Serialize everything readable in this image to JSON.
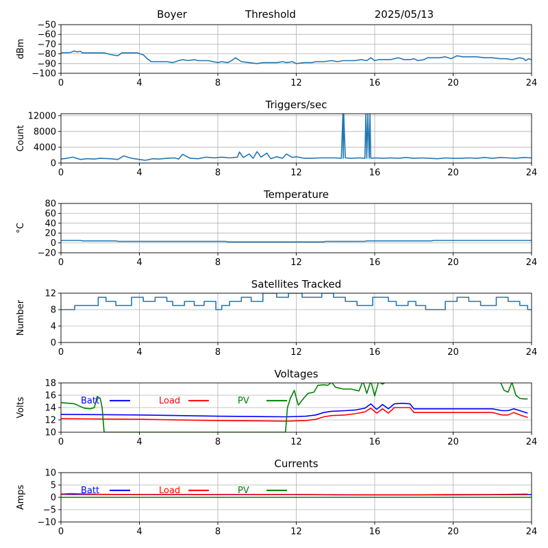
{
  "header": {
    "station": "Boyer",
    "mode": "Threshold",
    "date": "2025/05/13"
  },
  "chart_data": [
    {
      "type": "line",
      "title": "",
      "xlabel": "",
      "ylabel": "dBm",
      "xlim": [
        0,
        24
      ],
      "ylim": [
        -100,
        -50
      ],
      "xticks": [
        0,
        4,
        8,
        12,
        16,
        20,
        24
      ],
      "yticks": [
        -100,
        -90,
        -80,
        -70,
        -60,
        -50
      ],
      "ytick_labels": [
        "−100",
        "−90",
        "−80",
        "−70",
        "−60",
        "−50"
      ],
      "grid": true,
      "series": [
        {
          "color": "#1f77b4",
          "x": [
            0,
            0.5,
            0.7,
            0.8,
            1.0,
            1.1,
            1.6,
            2.2,
            2.6,
            2.9,
            3.1,
            3.6,
            3.9,
            4.2,
            4.4,
            4.6,
            4.9,
            5.4,
            5.7,
            6.0,
            6.2,
            6.5,
            6.8,
            7.0,
            7.5,
            8.0,
            8.2,
            8.5,
            8.7,
            8.9,
            9.2,
            9.6,
            10.0,
            10.3,
            10.7,
            11.0,
            11.3,
            11.5,
            11.8,
            12.0,
            12.4,
            12.8,
            13.0,
            13.4,
            13.8,
            14.1,
            14.4,
            14.7,
            15.0,
            15.3,
            15.6,
            15.8,
            16.0,
            16.2,
            16.5,
            16.8,
            17.2,
            17.5,
            17.8,
            18.0,
            18.2,
            18.5,
            18.7,
            19.0,
            19.3,
            19.6,
            19.9,
            20.2,
            20.5,
            20.8,
            21.2,
            21.6,
            22.0,
            22.4,
            22.7,
            23.0,
            23.2,
            23.4,
            23.6,
            23.7,
            23.85,
            24
          ],
          "y": [
            -79,
            -78.5,
            -77,
            -78,
            -77.5,
            -79,
            -79,
            -79,
            -81,
            -82,
            -79,
            -79,
            -79,
            -81,
            -85,
            -88,
            -88,
            -88,
            -89,
            -87,
            -86,
            -87,
            -86,
            -87,
            -87,
            -89,
            -88,
            -89,
            -87,
            -84,
            -88,
            -89,
            -90,
            -89,
            -89,
            -89,
            -88,
            -89,
            -88,
            -90,
            -89,
            -89,
            -88,
            -88,
            -87,
            -88,
            -87,
            -87,
            -87,
            -86,
            -87,
            -84,
            -87,
            -86,
            -86,
            -86,
            -84,
            -86,
            -86,
            -85,
            -87,
            -86,
            -84,
            -84,
            -84,
            -83,
            -85,
            -82,
            -83,
            -83,
            -83,
            -84,
            -84,
            -85,
            -85,
            -86,
            -85,
            -84,
            -85,
            -87,
            -85,
            -86
          ]
        }
      ]
    },
    {
      "type": "line",
      "title": "Triggers/sec",
      "xlabel": "",
      "ylabel": "Count",
      "xlim": [
        0,
        24
      ],
      "ylim": [
        0,
        12500
      ],
      "xticks": [
        0,
        4,
        8,
        12,
        16,
        20,
        24
      ],
      "yticks": [
        0,
        4000,
        8000,
        12000
      ],
      "ytick_labels": [
        "0",
        "4000",
        "8000",
        "12000"
      ],
      "grid": true,
      "series": [
        {
          "color": "#1f77b4",
          "x": [
            0,
            0.3,
            0.6,
            1.0,
            1.3,
            1.7,
            2.0,
            2.5,
            2.9,
            3.2,
            3.6,
            4.0,
            4.3,
            4.7,
            5.0,
            5.4,
            5.8,
            6.0,
            6.2,
            6.6,
            7.0,
            7.4,
            7.8,
            8.2,
            8.6,
            9.0,
            9.1,
            9.3,
            9.6,
            9.8,
            10.0,
            10.2,
            10.5,
            10.7,
            11.0,
            11.3,
            11.5,
            11.8,
            12.0,
            12.4,
            12.8,
            13.2,
            13.6,
            14.0,
            14.3,
            14.38,
            14.4,
            14.42,
            14.5,
            14.8,
            15.2,
            15.5,
            15.55,
            15.6,
            15.65,
            15.72,
            15.76,
            15.8,
            15.85,
            16.0,
            16.4,
            16.8,
            17.2,
            17.6,
            18.0,
            18.4,
            18.8,
            19.2,
            19.6,
            20.0,
            20.4,
            20.8,
            21.2,
            21.6,
            22.0,
            22.4,
            22.8,
            23.2,
            23.6,
            24
          ],
          "y": [
            1000,
            1200,
            1500,
            900,
            1100,
            1000,
            1200,
            1100,
            900,
            1800,
            1200,
            900,
            700,
            1100,
            1000,
            1200,
            1300,
            1000,
            2200,
            1200,
            1100,
            1500,
            1300,
            1500,
            1300,
            1500,
            2800,
            1400,
            2300,
            1200,
            2900,
            1500,
            2500,
            1100,
            1600,
            1200,
            2300,
            1400,
            1600,
            1200,
            1200,
            1300,
            1300,
            1300,
            1200,
            12500,
            1200,
            12500,
            1300,
            1200,
            1300,
            1200,
            12500,
            1200,
            12500,
            1200,
            12500,
            1300,
            1200,
            1300,
            1200,
            1300,
            1200,
            1400,
            1200,
            1300,
            1200,
            1100,
            1300,
            1200,
            1200,
            1300,
            1200,
            1400,
            1200,
            1400,
            1300,
            1200,
            1400,
            1300
          ]
        }
      ]
    },
    {
      "type": "line",
      "title": "Temperature",
      "xlabel": "",
      "ylabel": "°C",
      "xlim": [
        0,
        24
      ],
      "ylim": [
        -20,
        80
      ],
      "xticks": [
        0,
        4,
        8,
        12,
        16,
        20,
        24
      ],
      "yticks": [
        -20,
        0,
        20,
        40,
        60,
        80
      ],
      "ytick_labels": [
        "−20",
        "0",
        "20",
        "40",
        "60",
        "80"
      ],
      "grid": true,
      "series": [
        {
          "color": "#1f77b4",
          "x": [
            0,
            1,
            1.1,
            2.8,
            2.9,
            8.4,
            8.5,
            13.4,
            13.5,
            15.5,
            15.6,
            18.9,
            19.0,
            24
          ],
          "y": [
            5,
            5,
            4,
            4,
            3,
            3,
            2,
            2,
            3,
            3,
            4,
            4,
            5,
            5
          ]
        }
      ]
    },
    {
      "type": "line",
      "title": "Satellites Tracked",
      "xlabel": "",
      "ylabel": "Number",
      "xlim": [
        0,
        24
      ],
      "ylim": [
        0,
        12
      ],
      "xticks": [
        0,
        4,
        8,
        12,
        16,
        20,
        24
      ],
      "yticks": [
        0,
        4,
        8,
        12
      ],
      "ytick_labels": [
        "0",
        "4",
        "8",
        "12"
      ],
      "grid": true,
      "series": [
        {
          "color": "#1f77b4",
          "x": [
            0,
            0.7,
            0.7,
            1.9,
            1.9,
            2.3,
            2.3,
            2.8,
            2.8,
            3.6,
            3.6,
            4.2,
            4.2,
            4.8,
            4.8,
            5.4,
            5.4,
            5.7,
            5.7,
            6.3,
            6.3,
            6.8,
            6.8,
            7.3,
            7.3,
            7.9,
            7.9,
            8.2,
            8.2,
            8.6,
            8.6,
            9.2,
            9.2,
            9.7,
            9.7,
            10.3,
            10.3,
            11.0,
            11.0,
            11.6,
            11.6,
            12.3,
            12.3,
            13.3,
            13.3,
            13.9,
            13.9,
            14.5,
            14.5,
            15.1,
            15.1,
            15.9,
            15.9,
            16.7,
            16.7,
            17.1,
            17.1,
            17.7,
            17.7,
            18.1,
            18.1,
            18.6,
            18.6,
            19.6,
            19.6,
            20.2,
            20.2,
            20.8,
            20.8,
            21.4,
            21.4,
            22.2,
            22.2,
            22.8,
            22.8,
            23.4,
            23.4,
            23.8,
            23.8,
            24
          ],
          "y": [
            8,
            8,
            9,
            9,
            11,
            11,
            10,
            10,
            9,
            9,
            11,
            11,
            10,
            10,
            11,
            11,
            10,
            10,
            9,
            9,
            10,
            10,
            9,
            9,
            10,
            10,
            8,
            8,
            9,
            9,
            10,
            10,
            11,
            11,
            10,
            10,
            12,
            12,
            11,
            11,
            12,
            12,
            11,
            11,
            12,
            12,
            11,
            11,
            10,
            10,
            9,
            9,
            11,
            11,
            10,
            10,
            9,
            9,
            10,
            10,
            9,
            9,
            8,
            8,
            10,
            10,
            11,
            11,
            10,
            10,
            9,
            9,
            11,
            11,
            10,
            10,
            9,
            9,
            8,
            8
          ]
        }
      ]
    },
    {
      "type": "line",
      "title": "Voltages",
      "xlabel": "",
      "ylabel": "Volts",
      "xlim": [
        0,
        24
      ],
      "ylim": [
        10,
        18
      ],
      "xticks": [
        0,
        4,
        8,
        12,
        16,
        20,
        24
      ],
      "yticks": [
        10,
        12,
        14,
        16,
        18
      ],
      "ytick_labels": [
        "10",
        "12",
        "14",
        "16",
        "18"
      ],
      "grid": true,
      "legend": "top-left",
      "series": [
        {
          "name": "Batt",
          "color": "#0000ff",
          "x": [
            0,
            4,
            8,
            11.5,
            12.5,
            13.0,
            13.4,
            13.8,
            14.5,
            15.0,
            15.5,
            15.8,
            16.1,
            16.4,
            16.7,
            17.0,
            17.4,
            17.8,
            18.0,
            19,
            20,
            21,
            22.0,
            22.5,
            22.8,
            23.1,
            23.5,
            23.8
          ],
          "y": [
            12.9,
            12.8,
            12.6,
            12.5,
            12.6,
            12.8,
            13.2,
            13.4,
            13.5,
            13.6,
            13.9,
            14.6,
            13.7,
            14.5,
            13.8,
            14.6,
            14.7,
            14.6,
            13.8,
            13.8,
            13.8,
            13.8,
            13.8,
            13.5,
            13.5,
            13.8,
            13.4,
            13.1
          ]
        },
        {
          "name": "Load",
          "color": "#ff0000",
          "x": [
            0,
            4,
            8,
            11.5,
            12.5,
            13.0,
            13.4,
            13.8,
            14.5,
            15.0,
            15.5,
            15.8,
            16.1,
            16.4,
            16.7,
            17.0,
            17.4,
            17.8,
            18.0,
            19,
            20,
            21,
            22.0,
            22.5,
            22.8,
            23.1,
            23.5,
            23.8
          ],
          "y": [
            12.2,
            12.1,
            11.9,
            11.8,
            11.9,
            12.1,
            12.5,
            12.7,
            12.8,
            13.0,
            13.3,
            13.9,
            13.1,
            13.8,
            13.1,
            14.0,
            14.0,
            14.0,
            13.2,
            13.2,
            13.2,
            13.2,
            13.2,
            12.8,
            12.8,
            13.2,
            12.7,
            12.4
          ]
        },
        {
          "name": "PV",
          "color": "#008000",
          "x": [
            0,
            0.4,
            0.7,
            0.9,
            1.2,
            1.5,
            1.7,
            1.85,
            2.0,
            2.1,
            2.2,
            11.45,
            11.55,
            11.7,
            11.9,
            12.1,
            12.4,
            12.6,
            12.9,
            13.1,
            13.4,
            13.6,
            13.8,
            14.0,
            14.4,
            14.8,
            15.2,
            15.4,
            15.6,
            15.8,
            16.0,
            16.2,
            16.4,
            16.6,
            22.4,
            22.6,
            22.8,
            23.0,
            23.2,
            23.4,
            23.6,
            23.8
          ],
          "y": [
            14.8,
            14.7,
            14.6,
            14.3,
            13.9,
            13.8,
            14.0,
            15.8,
            15.5,
            14.0,
            10,
            10,
            14.0,
            15.5,
            16.8,
            14.4,
            15.6,
            16.3,
            16.5,
            17.6,
            17.7,
            17.6,
            18.1,
            17.3,
            17.0,
            17.0,
            16.7,
            18.3,
            16.3,
            18.3,
            15.9,
            18.2,
            17.8,
            18.2,
            18.2,
            16.8,
            16.5,
            18.1,
            16.0,
            15.5,
            15.4,
            15.4
          ]
        }
      ]
    },
    {
      "type": "line",
      "title": "Currents",
      "xlabel": "",
      "ylabel": "Amps",
      "xlim": [
        0,
        24
      ],
      "ylim": [
        -10,
        10
      ],
      "xticks": [
        0,
        4,
        8,
        12,
        16,
        20,
        24
      ],
      "yticks": [
        -10,
        -5,
        0,
        5,
        10
      ],
      "ytick_labels": [
        "−10",
        "−5",
        "0",
        "5",
        "10"
      ],
      "grid": true,
      "legend": "top-left",
      "series": [
        {
          "name": "Batt",
          "color": "#0000ff",
          "x": [
            0,
            4,
            8,
            12,
            16,
            20,
            24
          ],
          "y": [
            1.2,
            1.1,
            1.1,
            1.1,
            1.0,
            1.0,
            1.1
          ]
        },
        {
          "name": "Load",
          "color": "#ff0000",
          "x": [
            0,
            0.5,
            1.0,
            2.0,
            4,
            8,
            12,
            14,
            16,
            18,
            20,
            22,
            23,
            23.8
          ],
          "y": [
            1.3,
            1.5,
            1.4,
            1.2,
            1.1,
            1.1,
            1.1,
            1.0,
            1.0,
            1.0,
            1.1,
            1.1,
            1.2,
            1.3
          ]
        },
        {
          "name": "PV",
          "color": "#008000",
          "x": [
            0,
            4,
            8,
            12,
            16,
            20,
            24
          ],
          "y": [
            0,
            0,
            0,
            0,
            0,
            0,
            0
          ]
        }
      ]
    }
  ]
}
